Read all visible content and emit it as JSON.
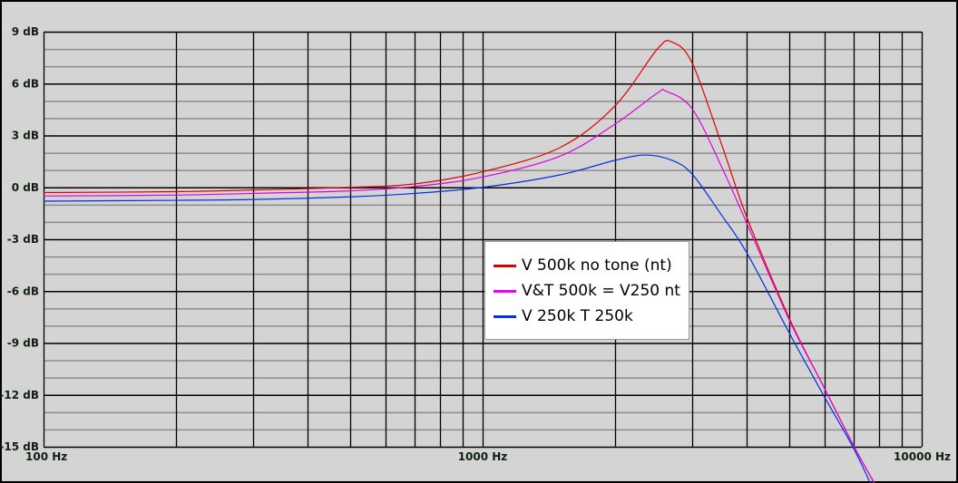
{
  "chart_data": {
    "type": "line",
    "title": "",
    "xlabel": "",
    "ylabel": "",
    "xscale": "log",
    "xlim": [
      100,
      10000
    ],
    "ylim": [
      -15,
      9
    ],
    "x_tick_labels": [
      {
        "value": 100,
        "label": "100 Hz"
      },
      {
        "value": 1000,
        "label": "1000 Hz"
      },
      {
        "value": 10000,
        "label": "10000 Hz"
      }
    ],
    "y_tick_labels": [
      {
        "value": 9,
        "label": "9 dB"
      },
      {
        "value": 6,
        "label": "6 dB"
      },
      {
        "value": 3,
        "label": "3 dB"
      },
      {
        "value": 0,
        "label": "0 dB"
      },
      {
        "value": -3,
        "label": "-3 dB"
      },
      {
        "value": -6,
        "label": "-6 dB"
      },
      {
        "value": -9,
        "label": "-9 dB"
      },
      {
        "value": -12,
        "label": "-12 dB"
      },
      {
        "value": -15,
        "label": "-15 dB"
      }
    ],
    "grid": {
      "major_y_step": 3,
      "minor_y_step": 1,
      "x": "log-decade"
    },
    "legend_position": "center",
    "series": [
      {
        "name": "V 500k no tone (nt)",
        "color": "#e00000",
        "x": [
          100,
          200,
          300,
          500,
          700,
          1000,
          1500,
          2000,
          2500,
          2700,
          3000,
          3500,
          4000,
          5000,
          6000,
          7000,
          7800
        ],
        "y": [
          -0.3,
          -0.25,
          -0.15,
          0.0,
          0.2,
          0.9,
          2.3,
          4.7,
          8.0,
          8.4,
          7.2,
          2.5,
          -1.75,
          -7.6,
          -11.6,
          -14.95,
          -17.1
        ]
      },
      {
        "name": "V&T 500k = V250 nt",
        "color": "#e000e0",
        "x": [
          100,
          200,
          300,
          500,
          700,
          1000,
          1500,
          2000,
          2500,
          2620,
          3000,
          3500,
          4000,
          5000,
          6000,
          7000,
          7800
        ],
        "y": [
          -0.5,
          -0.45,
          -0.35,
          -0.2,
          0.05,
          0.6,
          1.8,
          3.65,
          5.45,
          5.55,
          4.55,
          1.2,
          -2.1,
          -7.7,
          -11.6,
          -14.95,
          -17.1
        ]
      },
      {
        "name": "V 250k T 250k",
        "color": "#0030e0",
        "x": [
          100,
          200,
          300,
          500,
          700,
          1000,
          1500,
          2000,
          2350,
          2700,
          3000,
          3500,
          4000,
          5000,
          6000,
          7000,
          7700
        ],
        "y": [
          -0.8,
          -0.75,
          -0.7,
          -0.55,
          -0.35,
          0.0,
          0.72,
          1.56,
          1.87,
          1.56,
          0.77,
          -1.6,
          -3.8,
          -8.45,
          -12.1,
          -15.1,
          -17.3
        ]
      }
    ]
  }
}
